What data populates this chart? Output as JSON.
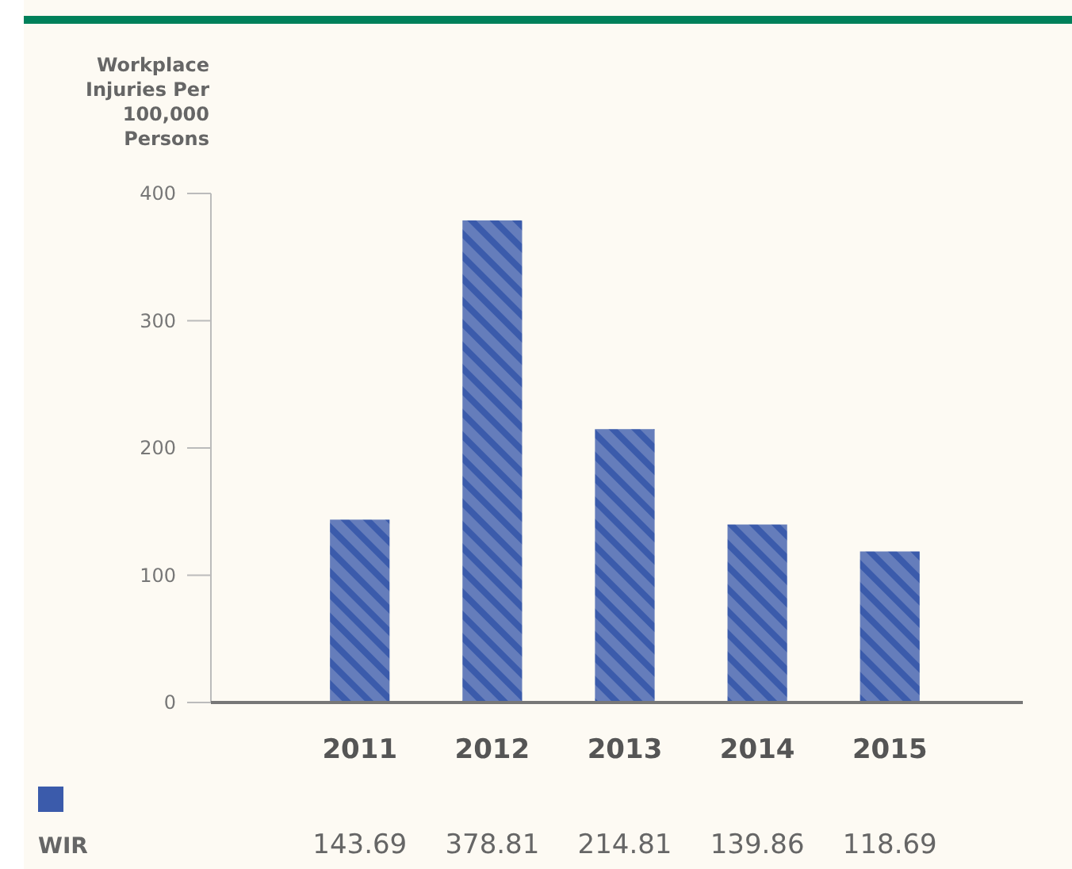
{
  "chart_data": {
    "type": "bar",
    "ylabel": "Workplace Injuries Per 100,000 Persons",
    "categories": [
      "2011",
      "2012",
      "2013",
      "2014",
      "2015"
    ],
    "series": [
      {
        "name": "WIR",
        "color": "#3b5bab",
        "values": [
          143.69,
          378.81,
          214.81,
          139.86,
          118.69
        ]
      }
    ],
    "ylim": [
      0,
      400
    ],
    "yticks": [
      0,
      100,
      200,
      300,
      400
    ],
    "grid": false,
    "legend": "bottom left",
    "data_labels": true
  }
}
